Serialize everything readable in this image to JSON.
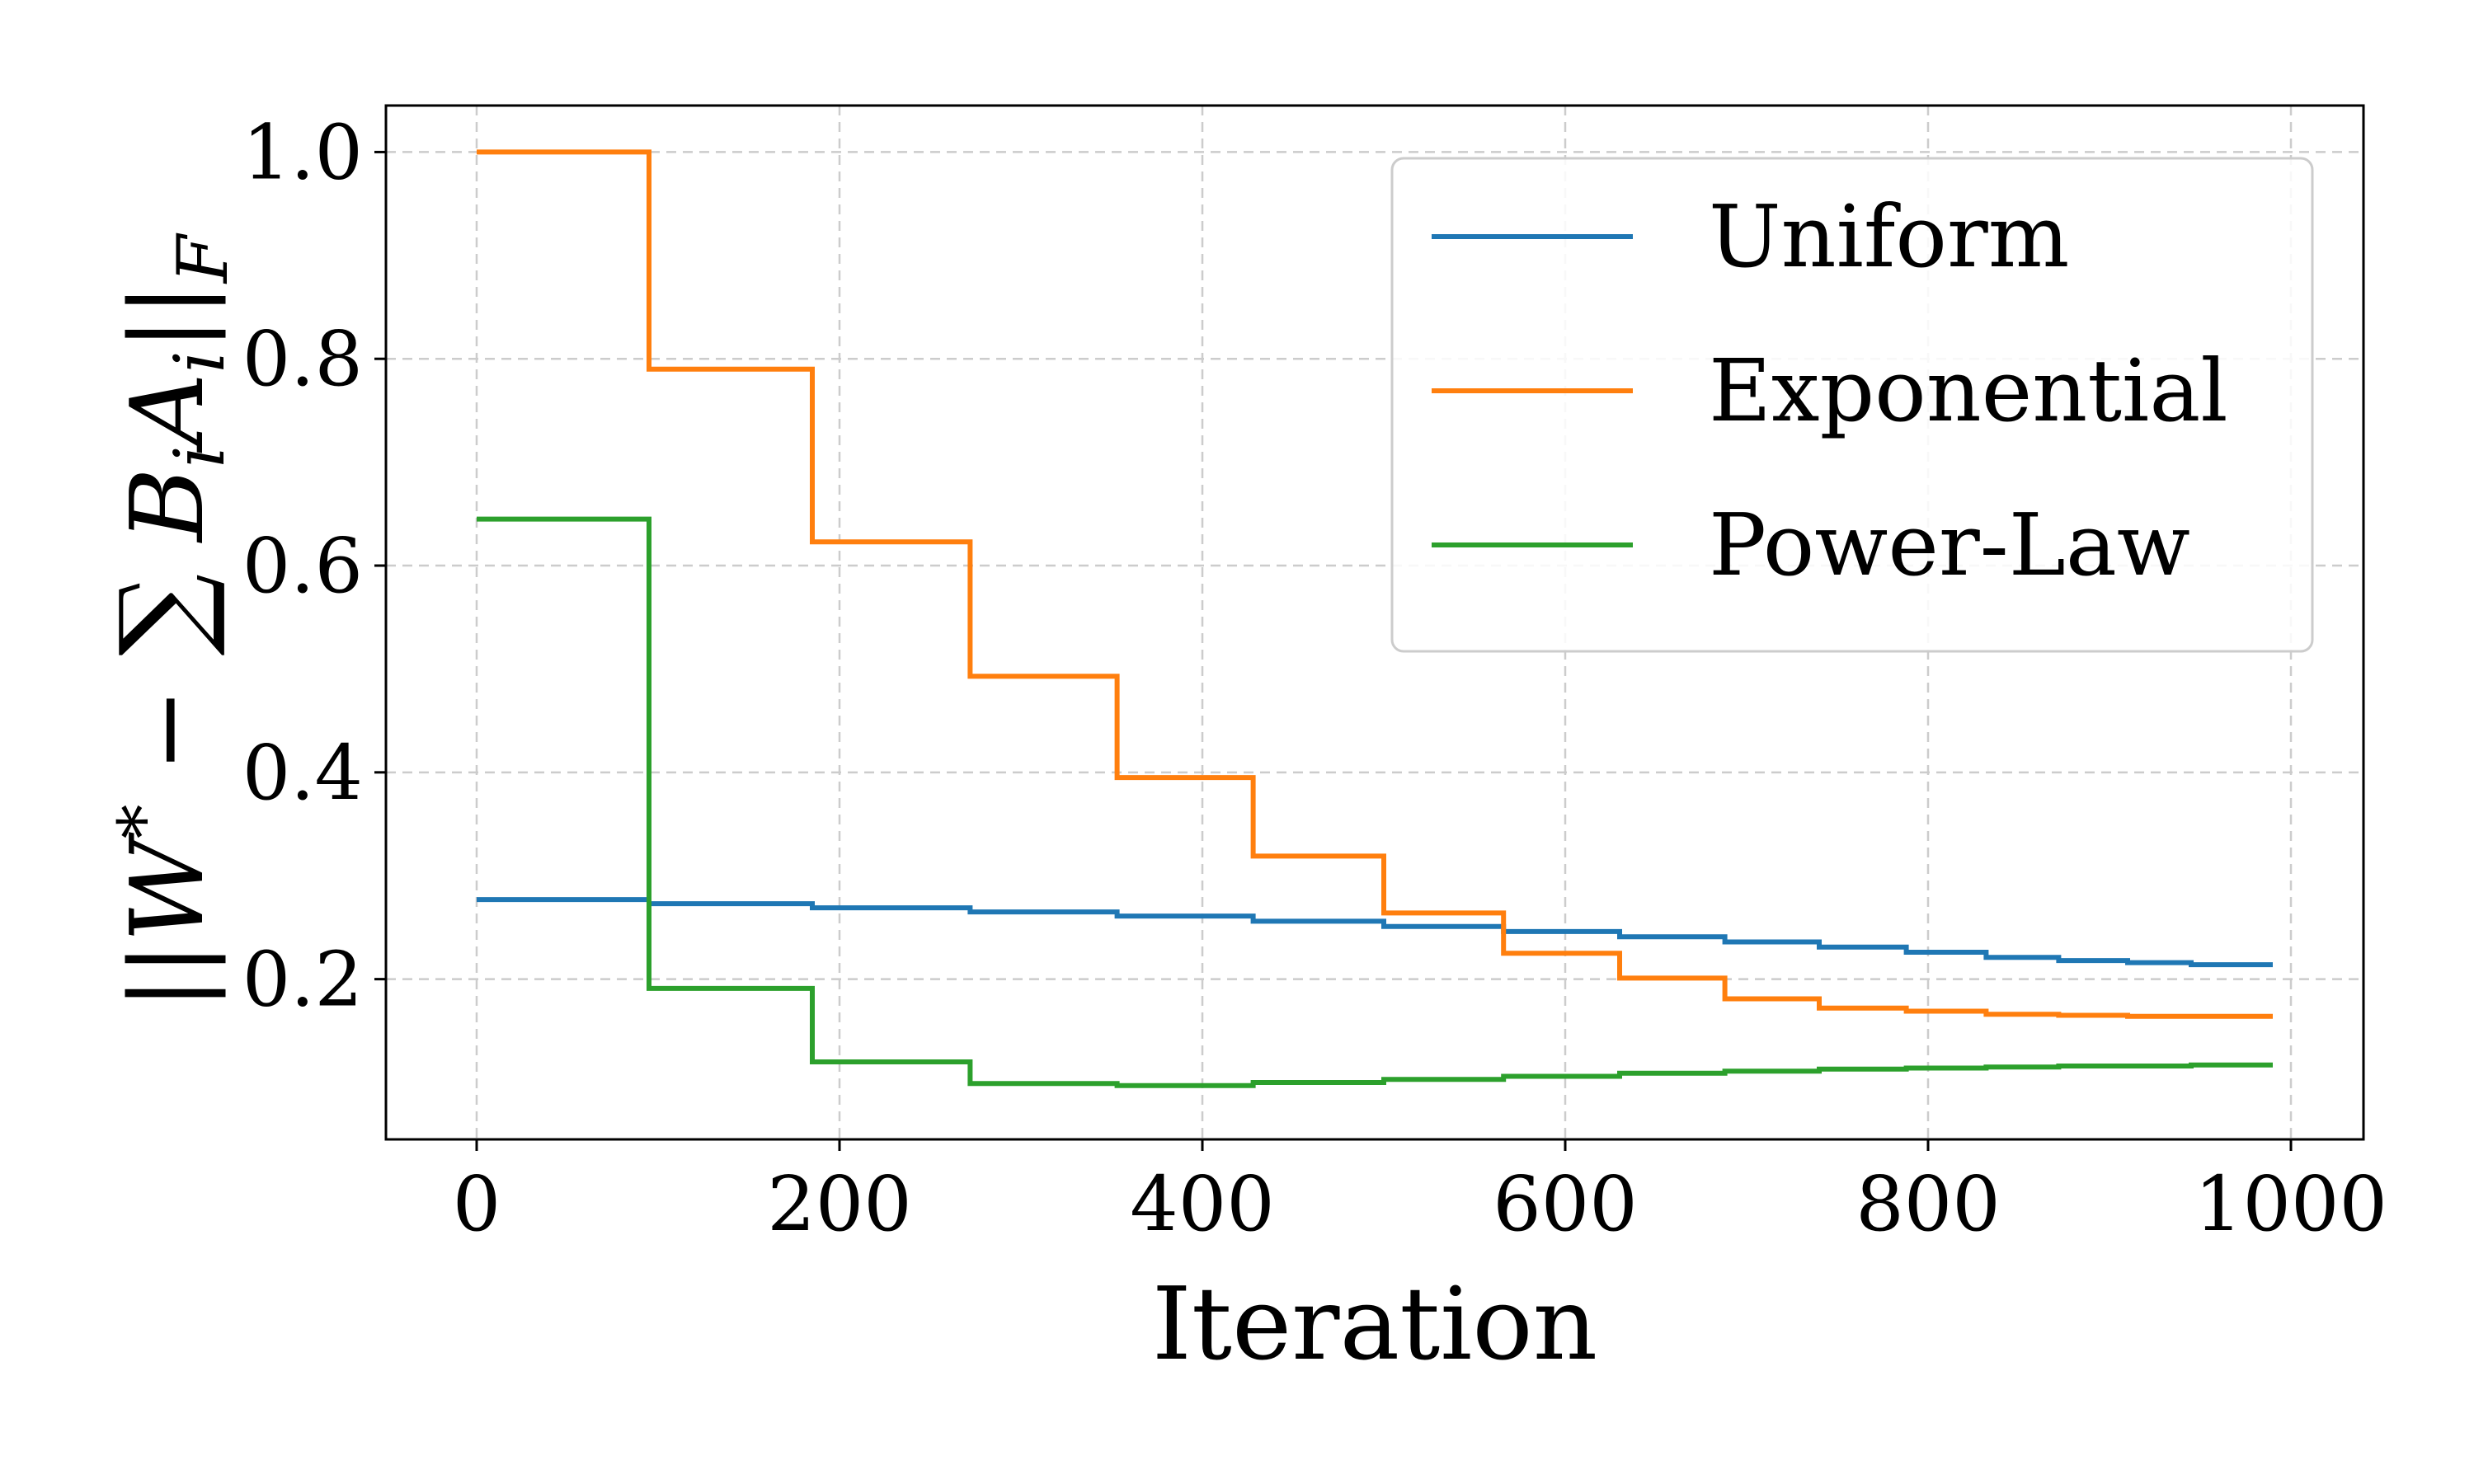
{
  "chart_data": {
    "type": "line",
    "title": "",
    "xlabel": "Iteration",
    "ylabel": "||W* − ∑ B_i A_i||_F",
    "xlim": [
      -50,
      1040
    ],
    "ylim": [
      0.045,
      1.045
    ],
    "xticks": [
      0,
      200,
      400,
      600,
      800,
      1000
    ],
    "xtick_labels": [
      "0",
      "200",
      "400",
      "600",
      "800",
      "1000"
    ],
    "yticks": [
      0.2,
      0.4,
      0.6,
      0.8,
      1.0
    ],
    "ytick_labels": [
      "0.2",
      "0.4",
      "0.6",
      "0.8",
      "1.0"
    ],
    "grid": true,
    "legend_position": "top-right",
    "series": [
      {
        "name": "Uniform",
        "color": "#1f77b4",
        "step": true,
        "x": [
          0,
          95,
          185,
          272,
          353,
          428,
          500,
          566,
          630,
          688,
          740,
          788,
          832,
          872,
          910,
          945,
          990
        ],
        "y": [
          0.277,
          0.273,
          0.269,
          0.265,
          0.261,
          0.256,
          0.251,
          0.246,
          0.241,
          0.236,
          0.231,
          0.226,
          0.221,
          0.218,
          0.216,
          0.214,
          0.214
        ]
      },
      {
        "name": "Exponential",
        "color": "#ff7f0e",
        "step": true,
        "x": [
          0,
          95,
          185,
          272,
          353,
          428,
          500,
          566,
          630,
          688,
          740,
          788,
          832,
          872,
          910,
          945,
          990
        ],
        "y": [
          1.0,
          0.79,
          0.623,
          0.493,
          0.395,
          0.319,
          0.264,
          0.225,
          0.201,
          0.181,
          0.172,
          0.169,
          0.166,
          0.165,
          0.164,
          0.164,
          0.164
        ]
      },
      {
        "name": "Power-Law",
        "color": "#2ca02c",
        "step": true,
        "x": [
          0,
          95,
          185,
          272,
          353,
          428,
          500,
          566,
          630,
          688,
          740,
          788,
          832,
          872,
          910,
          945,
          990
        ],
        "y": [
          0.645,
          0.191,
          0.12,
          0.099,
          0.097,
          0.1,
          0.103,
          0.106,
          0.109,
          0.111,
          0.113,
          0.114,
          0.115,
          0.116,
          0.116,
          0.117,
          0.117
        ]
      }
    ]
  }
}
